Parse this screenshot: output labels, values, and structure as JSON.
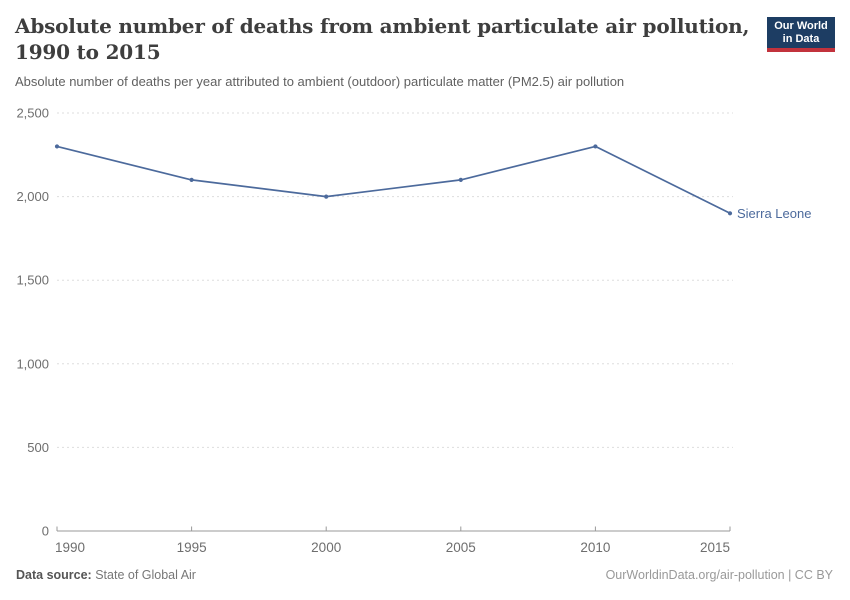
{
  "header": {
    "logo": {
      "line1": "Our World",
      "line2": "in Data",
      "bg_color": "#1d3d63",
      "stripe_color": "#c2323c"
    }
  },
  "chart_data": {
    "type": "line",
    "title": "Absolute number of deaths from ambient particulate air pollution, 1990 to 2015",
    "title_lines": [
      "Absolute number of deaths from ambient particulate air pollution,",
      "1990 to 2015"
    ],
    "subtitle": "Absolute number of deaths per year attributed to ambient (outdoor) particulate matter (PM2.5) air pollution",
    "series": [
      {
        "name": "Sierra Leone",
        "color": "#4C6A9C",
        "x": [
          1990,
          1995,
          2000,
          2005,
          2010,
          2015
        ],
        "values": [
          2300,
          2100,
          2000,
          2100,
          2300,
          1900
        ]
      }
    ],
    "xlabel": "",
    "ylabel": "",
    "x_ticks": [
      1990,
      1995,
      2000,
      2005,
      2010,
      2015
    ],
    "y_ticks": [
      0,
      500,
      1000,
      1500,
      2000,
      2500
    ],
    "xlim": [
      1990,
      2015
    ],
    "ylim": [
      0,
      2500
    ],
    "grid": "horizontal-dashed",
    "legend_position": "end-of-line-label",
    "colors": {
      "grid": "#dddddd",
      "axis": "#999999",
      "tick_label": "#6e6e6e"
    }
  },
  "footer": {
    "source_label": "Data source:",
    "source_value": "State of Global Air",
    "right_text": "OurWorldinData.org/air-pollution | CC BY"
  }
}
